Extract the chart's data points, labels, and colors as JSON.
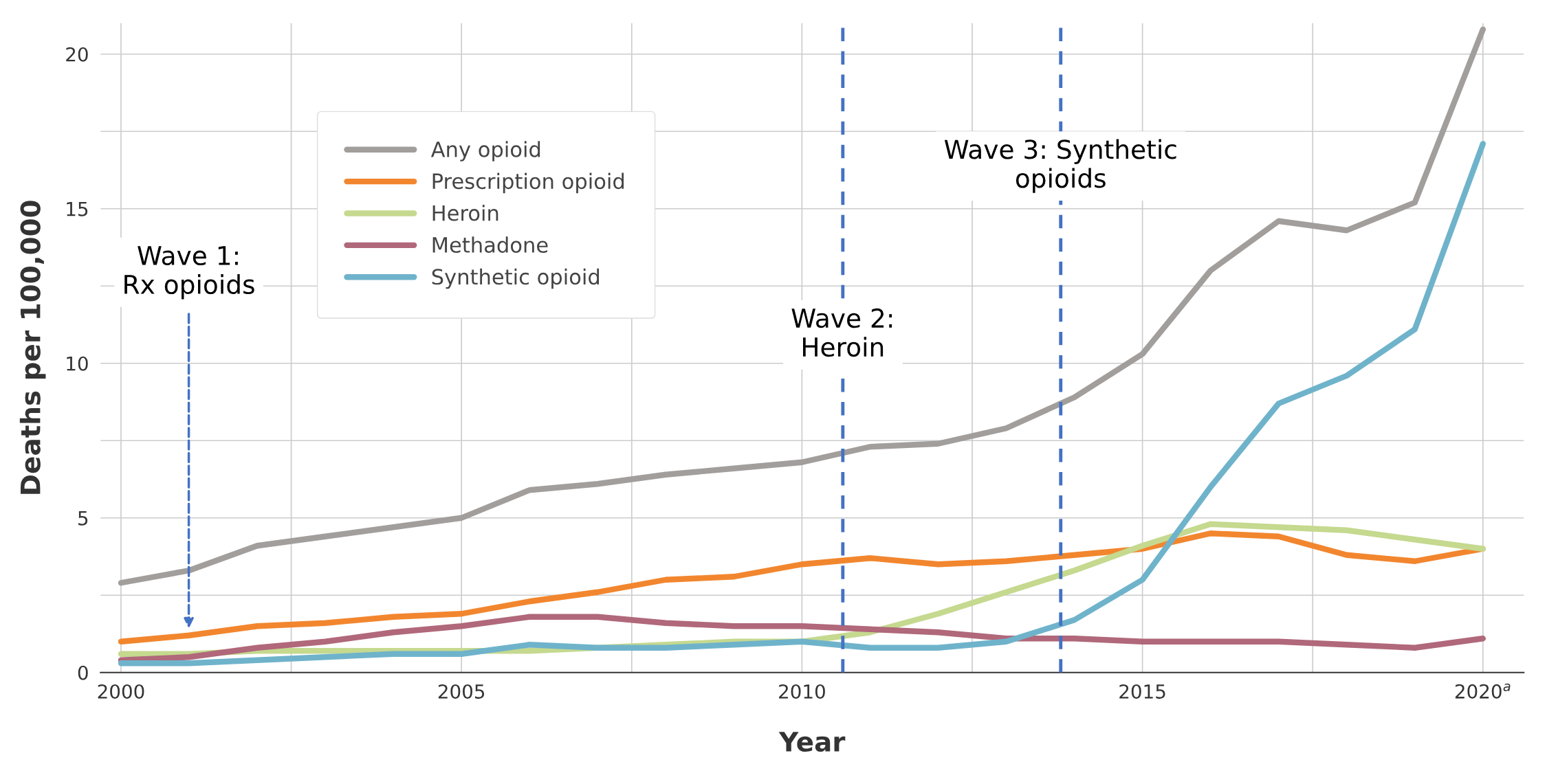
{
  "chart_data": {
    "type": "line",
    "xlabel": "Year",
    "ylabel": "Deaths per 100,000",
    "x": [
      2000,
      2001,
      2002,
      2003,
      2004,
      2005,
      2006,
      2007,
      2008,
      2009,
      2010,
      2011,
      2012,
      2013,
      2014,
      2015,
      2016,
      2017,
      2018,
      2019,
      2020
    ],
    "series": [
      {
        "name": "Any opioid",
        "color": "#a29e9c",
        "values": [
          2.9,
          3.3,
          4.1,
          4.4,
          4.7,
          5.0,
          5.9,
          6.1,
          6.4,
          6.6,
          6.8,
          7.3,
          7.4,
          7.9,
          8.9,
          10.3,
          13.0,
          14.6,
          14.3,
          15.2,
          20.8
        ]
      },
      {
        "name": "Prescription opioid",
        "color": "#f2862e",
        "values": [
          1.0,
          1.2,
          1.5,
          1.6,
          1.8,
          1.9,
          2.3,
          2.6,
          3.0,
          3.1,
          3.5,
          3.7,
          3.5,
          3.6,
          3.8,
          4.0,
          4.5,
          4.4,
          3.8,
          3.6,
          4.0
        ]
      },
      {
        "name": "Heroin",
        "color": "#c5d98f",
        "values": [
          0.6,
          0.6,
          0.7,
          0.7,
          0.7,
          0.7,
          0.7,
          0.8,
          0.9,
          1.0,
          1.0,
          1.3,
          1.9,
          2.6,
          3.3,
          4.1,
          4.8,
          4.7,
          4.6,
          4.3,
          4.0
        ]
      },
      {
        "name": "Methadone",
        "color": "#b0687a",
        "values": [
          0.4,
          0.5,
          0.8,
          1.0,
          1.3,
          1.5,
          1.8,
          1.8,
          1.6,
          1.5,
          1.5,
          1.4,
          1.3,
          1.1,
          1.1,
          1.0,
          1.0,
          1.0,
          0.9,
          0.8,
          1.1
        ]
      },
      {
        "name": "Synthetic opioid",
        "color": "#6fb3cb",
        "values": [
          0.3,
          0.3,
          0.4,
          0.5,
          0.6,
          0.6,
          0.9,
          0.8,
          0.8,
          0.9,
          1.0,
          0.8,
          0.8,
          1.0,
          1.7,
          3.0,
          6.0,
          8.7,
          9.6,
          11.1,
          17.1
        ]
      }
    ],
    "xlim": [
      1999.7,
      2020.6
    ],
    "ylim": [
      0,
      21
    ],
    "xticks": [
      2000,
      {
        "value": 2002.5,
        "label": null
      },
      2005,
      {
        "value": 2007.5,
        "label": null
      },
      2010,
      {
        "value": 2012.5,
        "label": null
      },
      2015,
      {
        "value": 2017.5,
        "label": null
      },
      {
        "value": 2020,
        "label": "2020$^{a}$"
      }
    ],
    "yticks": [
      0,
      {
        "value": 2.5,
        "label": null
      },
      5,
      {
        "value": 7.5,
        "label": null
      },
      10,
      {
        "value": 12.5,
        "label": null
      },
      15,
      {
        "value": 17.5,
        "label": null
      },
      20
    ],
    "ref_lines": [
      {
        "axis": "x",
        "value": 2010.6,
        "label": "Wave 2:\nHeroin",
        "color": "#4472c4",
        "line_style": "dashed"
      },
      {
        "axis": "x",
        "value": 2013.8,
        "label": "Wave 3: Synthetic\nopioids",
        "color": "#4472c4",
        "line_style": "dashed"
      }
    ],
    "annotations": [
      "Wave 1:\nRx opioids"
    ],
    "grid": true,
    "legend": "top left",
    "line_style": "solid",
    "marker": "none"
  }
}
